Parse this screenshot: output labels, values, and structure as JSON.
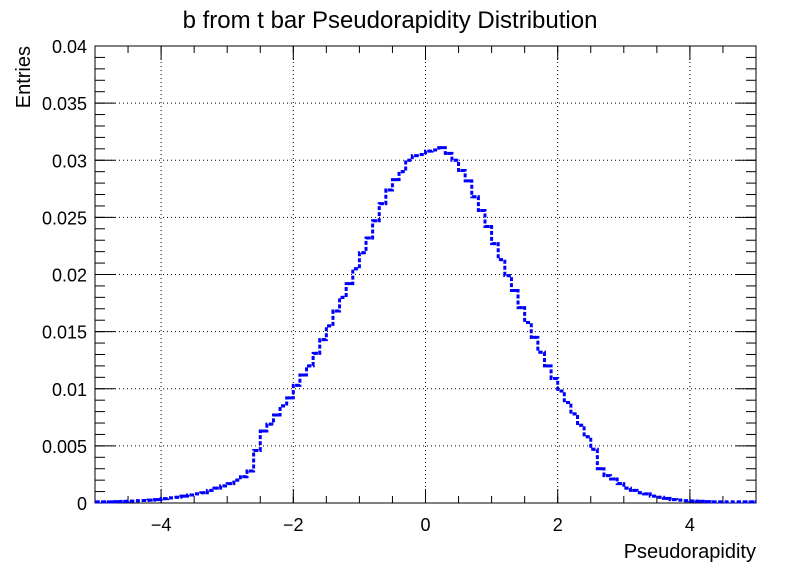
{
  "chart_data": {
    "type": "line",
    "title": "b from t bar Pseudorapidity Distribution",
    "xlabel": "Pseudorapidity",
    "ylabel": "Entries",
    "xlim": [
      -5,
      5
    ],
    "ylim": [
      0,
      0.04
    ],
    "grid": true,
    "line_style": "dotted step histogram",
    "series_color": "#0000ff",
    "x_ticks": [
      -4,
      -2,
      0,
      2,
      4
    ],
    "x_tick_labels": [
      "−4",
      "−2",
      "0",
      "2",
      "4"
    ],
    "y_ticks": [
      0,
      0.005,
      0.01,
      0.015,
      0.02,
      0.025,
      0.03,
      0.035,
      0.04
    ],
    "y_tick_labels": [
      "0",
      "0.005",
      "0.01",
      "0.015",
      "0.02",
      "0.025",
      "0.03",
      "0.035",
      "0.04"
    ],
    "bin_width": 0.1,
    "series": [
      {
        "x": [
          -5.0,
          -4.9,
          -4.8,
          -4.7,
          -4.6,
          -4.5,
          -4.4,
          -4.3,
          -4.2,
          -4.1,
          -4.0,
          -3.9,
          -3.8,
          -3.7,
          -3.6,
          -3.5,
          -3.4,
          -3.3,
          -3.2,
          -3.1,
          -3.0,
          -2.9,
          -2.8,
          -2.7,
          -2.6,
          -2.5,
          -2.4,
          -2.3,
          -2.2,
          -2.1,
          -2.0,
          -1.9,
          -1.8,
          -1.7,
          -1.6,
          -1.5,
          -1.4,
          -1.3,
          -1.2,
          -1.1,
          -1.0,
          -0.9,
          -0.8,
          -0.7,
          -0.6,
          -0.5,
          -0.4,
          -0.3,
          -0.2,
          -0.1,
          0.0,
          0.1,
          0.2,
          0.3,
          0.4,
          0.5,
          0.6,
          0.7,
          0.8,
          0.9,
          1.0,
          1.1,
          1.2,
          1.3,
          1.4,
          1.5,
          1.6,
          1.7,
          1.8,
          1.9,
          2.0,
          2.1,
          2.2,
          2.3,
          2.4,
          2.5,
          2.6,
          2.7,
          2.8,
          2.9,
          3.0,
          3.1,
          3.2,
          3.3,
          3.4,
          3.5,
          3.6,
          3.7,
          3.8,
          3.9,
          4.0,
          4.1,
          4.2,
          4.3,
          4.4,
          4.5,
          4.6,
          4.7,
          4.8,
          4.9
        ],
        "values": [
          0.0001,
          0.0001,
          0.0001,
          0.00012,
          0.00014,
          0.00016,
          0.0002,
          0.00022,
          0.00025,
          0.0003,
          0.00038,
          0.00045,
          0.0005,
          0.0006,
          0.0007,
          0.0008,
          0.0009,
          0.0011,
          0.0013,
          0.0015,
          0.0017,
          0.002,
          0.0023,
          0.0028,
          0.0046,
          0.0063,
          0.0069,
          0.0077,
          0.0085,
          0.0092,
          0.0103,
          0.0112,
          0.012,
          0.0131,
          0.0143,
          0.0155,
          0.0168,
          0.018,
          0.0192,
          0.0205,
          0.0219,
          0.0232,
          0.0247,
          0.0262,
          0.0274,
          0.0283,
          0.029,
          0.03,
          0.0304,
          0.0305,
          0.0308,
          0.0309,
          0.0311,
          0.0306,
          0.03,
          0.0291,
          0.0282,
          0.0268,
          0.0256,
          0.0242,
          0.0227,
          0.0213,
          0.0199,
          0.0186,
          0.0171,
          0.0158,
          0.0145,
          0.0132,
          0.012,
          0.0109,
          0.0098,
          0.0088,
          0.0078,
          0.0068,
          0.0058,
          0.0047,
          0.003,
          0.0024,
          0.0021,
          0.0017,
          0.0013,
          0.0011,
          0.0009,
          0.0008,
          0.0006,
          0.0005,
          0.0004,
          0.0003,
          0.00025,
          0.0002,
          0.00017,
          0.00015,
          0.00012,
          0.0001,
          0.0001,
          0.0001,
          0.0001,
          0.0001,
          0.0001,
          0.0001
        ]
      }
    ]
  }
}
